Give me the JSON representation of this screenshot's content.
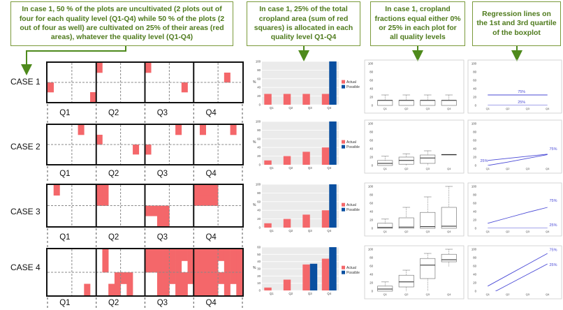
{
  "callouts": {
    "c1": "In case 1, 50 % of the plots are uncultivated (2 plots out of four for each quality level (Q1-Q4) while 50 % of the plots (2 out of four as well) are cultivated on 25% of their areas (red areas), whatever the quality level (Q1-Q4)",
    "c2": "In case 1, 25% of the total cropland area (sum of red squares) is allocated in each quality level Q1-Q4",
    "c3": "In case 1, cropland fractions equal either 0% or 25% in each plot for all quality levels",
    "c4": "Regression lines on the 1st and 3rd quartile of the boxplot"
  },
  "cases": [
    {
      "label": "CASE 1"
    },
    {
      "label": "CASE 2"
    },
    {
      "label": "CASE 3"
    },
    {
      "label": "CASE 4"
    }
  ],
  "quality_labels": [
    "Q1",
    "Q2",
    "Q3",
    "Q4"
  ],
  "colors": {
    "cropland": "#f4676a",
    "actual": "#f4676a",
    "possible": "#0a4fa0",
    "accent_green": "#4e7a1c",
    "regression": "#4a4ad6"
  },
  "legend": {
    "actual": "Actual",
    "possible": "Possible"
  },
  "axis": {
    "y_label": "%"
  },
  "regression_labels": {
    "q3": "75%",
    "q1": "25%"
  },
  "chart_data": [
    {
      "type": "bar",
      "case": "CASE 1",
      "categories": [
        "Q1",
        "Q2",
        "Q3",
        "Q4"
      ],
      "series": [
        {
          "name": "Actual",
          "values": [
            25,
            25,
            25,
            25
          ]
        },
        {
          "name": "Possible",
          "values": [
            0,
            0,
            0,
            100
          ]
        }
      ],
      "ylim": [
        0,
        100
      ],
      "yticks": [
        0,
        20,
        40,
        60,
        80,
        100
      ]
    },
    {
      "type": "bar",
      "case": "CASE 2",
      "categories": [
        "Q1",
        "Q2",
        "Q3",
        "Q4"
      ],
      "series": [
        {
          "name": "Actual",
          "values": [
            10,
            20,
            30,
            40
          ]
        },
        {
          "name": "Possible",
          "values": [
            0,
            0,
            0,
            100
          ]
        }
      ],
      "ylim": [
        0,
        100
      ],
      "yticks": [
        0,
        20,
        40,
        60,
        80,
        100
      ]
    },
    {
      "type": "bar",
      "case": "CASE 3",
      "categories": [
        "Q1",
        "Q2",
        "Q3",
        "Q4"
      ],
      "series": [
        {
          "name": "Actual",
          "values": [
            10,
            20,
            30,
            40
          ]
        },
        {
          "name": "Possible",
          "values": [
            0,
            0,
            0,
            100
          ]
        }
      ],
      "ylim": [
        0,
        100
      ],
      "yticks": [
        0,
        20,
        40,
        60,
        80,
        100
      ]
    },
    {
      "type": "bar",
      "case": "CASE 4",
      "categories": [
        "Q1",
        "Q2",
        "Q3",
        "Q4"
      ],
      "series": [
        {
          "name": "Actual",
          "values": [
            4,
            15,
            36,
            44
          ]
        },
        {
          "name": "Possible",
          "values": [
            0,
            0,
            37,
            60
          ]
        }
      ],
      "ylim": [
        0,
        60
      ],
      "yticks": [
        0,
        10,
        20,
        30,
        40,
        50,
        60
      ]
    },
    {
      "type": "boxplot",
      "case": "CASE 1",
      "categories": [
        "Q1",
        "Q2",
        "Q3",
        "Q4"
      ],
      "boxes": [
        [
          0,
          0,
          12,
          12,
          25
        ],
        [
          0,
          0,
          12,
          12,
          25
        ],
        [
          0,
          0,
          12,
          12,
          25
        ],
        [
          0,
          0,
          12,
          12,
          25
        ]
      ],
      "ylim": [
        0,
        100
      ],
      "yticks": [
        0,
        20,
        40,
        60,
        80,
        100
      ]
    },
    {
      "type": "boxplot",
      "case": "CASE 2",
      "categories": [
        "Q1",
        "Q2",
        "Q3",
        "Q4"
      ],
      "boxes": [
        [
          0,
          0,
          5,
          12,
          22
        ],
        [
          0,
          3,
          12,
          20,
          28
        ],
        [
          0,
          5,
          18,
          25,
          35
        ],
        [
          26,
          26,
          26,
          26,
          26
        ]
      ],
      "ylim": [
        0,
        100
      ],
      "yticks": [
        0,
        20,
        40,
        60,
        80,
        100
      ]
    },
    {
      "type": "boxplot",
      "case": "CASE 3",
      "categories": [
        "Q1",
        "Q2",
        "Q3",
        "Q4"
      ],
      "boxes": [
        [
          0,
          0,
          2,
          12,
          22
        ],
        [
          0,
          0,
          3,
          25,
          50
        ],
        [
          0,
          0,
          4,
          38,
          75
        ],
        [
          0,
          0,
          5,
          50,
          100
        ]
      ],
      "ylim": [
        0,
        100
      ],
      "yticks": [
        0,
        20,
        40,
        60,
        80,
        100
      ]
    },
    {
      "type": "boxplot",
      "case": "CASE 4",
      "categories": [
        "Q1",
        "Q2",
        "Q3",
        "Q4"
      ],
      "boxes": [
        [
          0,
          0,
          5,
          12,
          22
        ],
        [
          0,
          10,
          22,
          38,
          50
        ],
        [
          0,
          30,
          62,
          78,
          90
        ],
        [
          58,
          70,
          75,
          88,
          100
        ]
      ],
      "ylim": [
        0,
        100
      ],
      "yticks": [
        0,
        20,
        40,
        60,
        80,
        100
      ]
    },
    {
      "type": "line",
      "case": "CASE 1",
      "categories": [
        "Q1",
        "Q2",
        "Q3",
        "Q4"
      ],
      "series": [
        {
          "name": "75%",
          "values": [
            25,
            25,
            25,
            25
          ]
        },
        {
          "name": "25%",
          "values": [
            0,
            0,
            0,
            0
          ]
        }
      ],
      "ylim": [
        0,
        100
      ],
      "yticks": [
        0,
        20,
        40,
        60,
        80,
        100
      ]
    },
    {
      "type": "line",
      "case": "CASE 2",
      "categories": [
        "Q1",
        "Q2",
        "Q3",
        "Q4"
      ],
      "series": [
        {
          "name": "75%",
          "values": [
            12,
            17,
            22,
            27
          ]
        },
        {
          "name": "25%",
          "values": [
            0,
            8,
            17,
            26
          ]
        }
      ],
      "ylim": [
        0,
        100
      ],
      "yticks": [
        0,
        20,
        40,
        60,
        80,
        100
      ]
    },
    {
      "type": "line",
      "case": "CASE 3",
      "categories": [
        "Q1",
        "Q2",
        "Q3",
        "Q4"
      ],
      "series": [
        {
          "name": "75%",
          "values": [
            12,
            25,
            38,
            50
          ]
        },
        {
          "name": "25%",
          "values": [
            0,
            0,
            0,
            0
          ]
        }
      ],
      "ylim": [
        0,
        100
      ],
      "yticks": [
        0,
        20,
        40,
        60,
        80,
        100
      ]
    },
    {
      "type": "line",
      "case": "CASE 4",
      "categories": [
        "Q1",
        "Q2",
        "Q3",
        "Q4"
      ],
      "series": [
        {
          "name": "75%",
          "values": [
            12,
            38,
            64,
            90
          ]
        },
        {
          "name": "25%",
          "values": [
            -10,
            15,
            40,
            65
          ]
        }
      ],
      "ylim": [
        0,
        100
      ],
      "yticks": [
        0,
        20,
        40,
        60,
        80,
        100
      ]
    }
  ],
  "plots": [
    [
      [
        [],
        [
          [
            3,
            3
          ]
        ],
        [
          [
            0,
            0
          ]
        ],
        []
      ],
      [
        [
          [
            0,
            0
          ]
        ],
        [],
        [],
        []
      ],
      [
        [
          [
            0,
            0
          ]
        ],
        [
          [
            2,
            2
          ]
        ],
        [],
        []
      ],
      [
        [],
        [
          [
            1,
            1
          ]
        ],
        [],
        [
          [
            0,
            3
          ]
        ]
      ]
    ],
    [
      [
        [],
        [
          [
            1,
            0
          ]
        ],
        [],
        []
      ],
      [
        [
          [
            0,
            1
          ]
        ],
        [
          [
            2,
            2
          ]
        ],
        [],
        []
      ],
      [
        [
          [
            0,
            2
          ]
        ],
        [
          [
            1,
            0
          ]
        ],
        [
          [
            0,
            0
          ]
        ],
        []
      ],
      [
        [
          [
            1,
            0
          ]
        ],
        [
          [
            2,
            0
          ]
        ],
        [
          [
            0,
            2
          ]
        ],
        [
          [
            3,
            3
          ]
        ]
      ]
    ],
    [
      [
        [
          [
            1,
            0
          ]
        ],
        [],
        [],
        []
      ],
      [
        [
          [
            0,
            0
          ],
          [
            1,
            0
          ],
          [
            0,
            1
          ],
          [
            1,
            1
          ]
        ],
        [],
        [],
        []
      ],
      [
        [],
        [],
        [
          [
            0,
            0
          ],
          [
            1,
            0
          ],
          [
            2,
            0
          ],
          [
            3,
            0
          ],
          [
            2,
            1
          ],
          [
            3,
            1
          ]
        ],
        []
      ],
      [
        [
          [
            0,
            0
          ],
          [
            1,
            0
          ],
          [
            2,
            0
          ],
          [
            3,
            0
          ],
          [
            0,
            1
          ],
          [
            1,
            1
          ],
          [
            2,
            1
          ],
          [
            3,
            1
          ]
        ],
        [],
        [],
        []
      ]
    ],
    [
      [
        [],
        [],
        [],
        [
          [
            2,
            1
          ]
        ]
      ],
      [
        [
          [
            1,
            0
          ],
          [
            1,
            1
          ]
        ],
        [],
        [
          [
            3,
            0
          ],
          [
            2,
            1
          ],
          [
            3,
            1
          ]
        ],
        [
          [
            0,
            0
          ],
          [
            1,
            0
          ],
          [
            1,
            1
          ]
        ]
      ],
      [
        [
          [
            0,
            0
          ],
          [
            1,
            0
          ],
          [
            2,
            0
          ],
          [
            3,
            0
          ],
          [
            0,
            1
          ],
          [
            1,
            1
          ],
          [
            2,
            1
          ],
          [
            3,
            1
          ]
        ],
        [
          [
            0,
            0
          ],
          [
            1,
            0
          ],
          [
            2,
            0
          ],
          [
            3,
            0
          ],
          [
            0,
            1
          ],
          [
            1,
            1
          ],
          [
            3,
            1
          ]
        ],
        [
          [
            2,
            0
          ],
          [
            3,
            0
          ],
          [
            2,
            1
          ],
          [
            3,
            1
          ]
        ],
        [
          [
            0,
            0
          ],
          [
            1,
            0
          ],
          [
            2,
            0
          ],
          [
            3,
            0
          ],
          [
            1,
            1
          ],
          [
            2,
            1
          ]
        ]
      ],
      [
        [
          [
            0,
            0
          ],
          [
            1,
            0
          ],
          [
            2,
            0
          ],
          [
            3,
            0
          ],
          [
            0,
            1
          ],
          [
            1,
            1
          ],
          [
            2,
            1
          ],
          [
            3,
            1
          ]
        ],
        [
          [
            0,
            0
          ],
          [
            1,
            0
          ],
          [
            2,
            0
          ],
          [
            3,
            0
          ],
          [
            1,
            1
          ],
          [
            2,
            1
          ],
          [
            3,
            1
          ]
        ],
        [
          [
            0,
            0
          ],
          [
            1,
            0
          ],
          [
            2,
            0
          ],
          [
            3,
            0
          ],
          [
            0,
            1
          ],
          [
            1,
            1
          ],
          [
            2,
            1
          ],
          [
            3,
            1
          ]
        ],
        [
          [
            0,
            0
          ],
          [
            1,
            0
          ],
          [
            2,
            0
          ],
          [
            3,
            0
          ],
          [
            1,
            1
          ],
          [
            3,
            1
          ]
        ]
      ]
    ]
  ]
}
